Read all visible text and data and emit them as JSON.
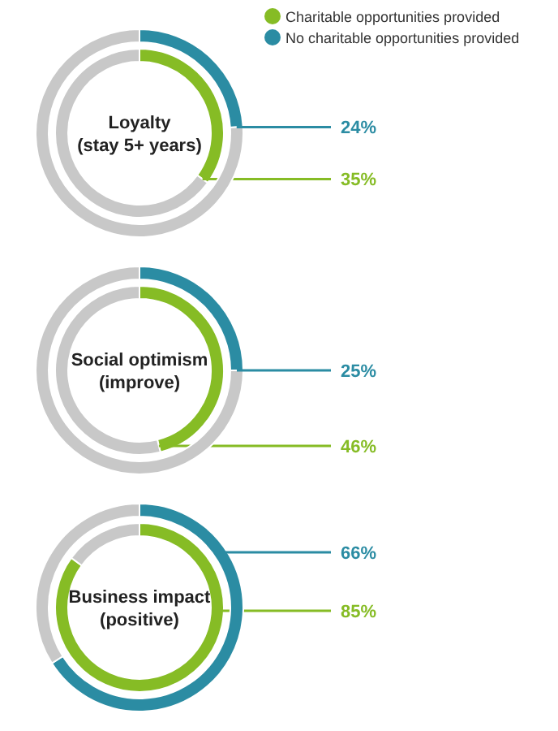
{
  "chart_data": [
    {
      "type": "donut",
      "title": "Loyalty (stay 5+ years)",
      "categories": [
        null,
        null
      ],
      "legend": "top right",
      "series": [
        {
          "name": "Charitable opportunities provided",
          "color": "#86bc25",
          "colors": [
            "#86bc25",
            "#c8c8c8"
          ],
          "values": [
            35,
            65
          ],
          "value_labels": [
            "35%",
            null
          ]
        },
        {
          "name": "No charitable opportunities provided",
          "color": "#2b8ca3",
          "colors": [
            "#2b8ca3",
            "#c8c8c8"
          ],
          "values": [
            24,
            76
          ],
          "value_labels": [
            "24%",
            null
          ]
        }
      ]
    },
    {
      "type": "donut",
      "title": "Social optimism (improve)",
      "categories": [
        null,
        null
      ],
      "series": [
        {
          "color": "#86bc25",
          "colors": [
            "#86bc25",
            "#c8c8c8"
          ],
          "values": [
            46,
            54
          ],
          "value_labels": [
            "46%",
            null
          ]
        },
        {
          "color": "#2b8ca3",
          "colors": [
            "#2b8ca3",
            "#c8c8c8"
          ],
          "values": [
            25,
            75
          ],
          "value_labels": [
            "25%",
            null
          ]
        }
      ]
    },
    {
      "type": "donut",
      "title": "Business impact (positive)",
      "categories": [
        null,
        null
      ],
      "series": [
        {
          "color": "#86bc25",
          "colors": [
            "#86bc25",
            "#c8c8c8"
          ],
          "values": [
            85,
            15
          ],
          "value_labels": [
            "85%",
            null
          ]
        },
        {
          "color": "#2b8ca3",
          "colors": [
            "#2b8ca3",
            "#c8c8c8"
          ],
          "values": [
            66,
            34
          ],
          "value_labels": [
            "66%",
            null
          ]
        }
      ]
    }
  ]
}
